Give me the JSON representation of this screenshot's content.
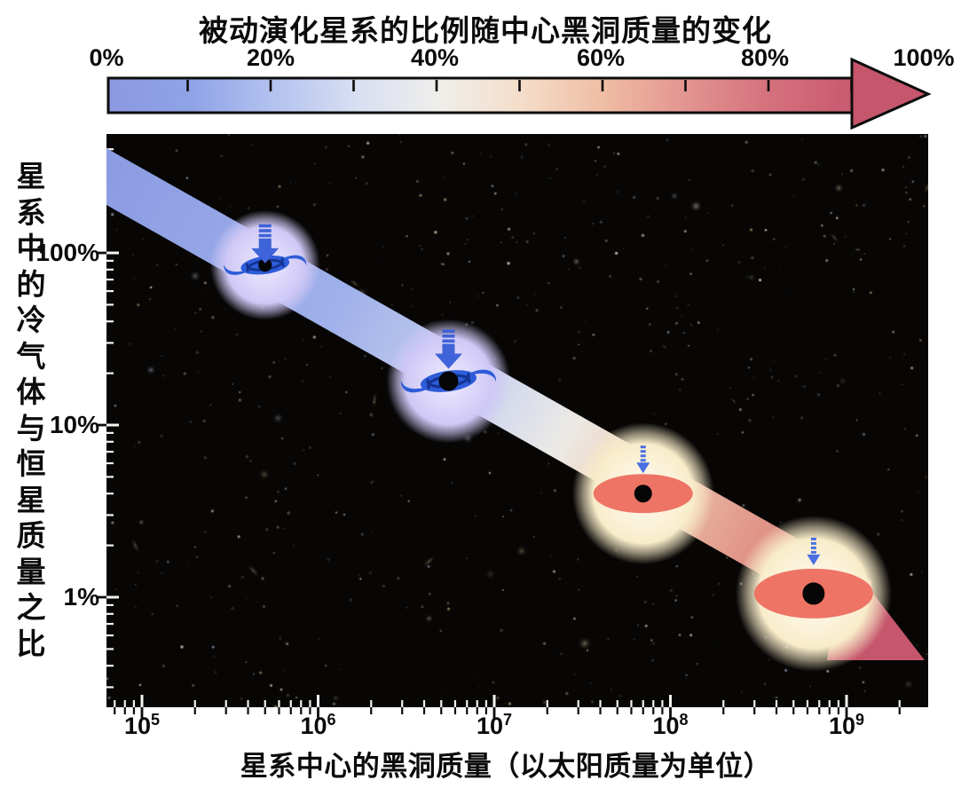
{
  "header": {
    "title": "被动演化星系的比例随中心黑洞质量的变化"
  },
  "colorbar": {
    "labels": [
      "0%",
      "20%",
      "40%",
      "60%",
      "80%",
      "100%"
    ],
    "tick_percents": [
      10,
      20,
      30,
      40,
      50,
      60,
      70,
      80,
      90
    ],
    "gradient": [
      "#8b99e0",
      "#8fa3e7",
      "#b3c2ef",
      "#d8dff2",
      "#efeeea",
      "#f4ddc9",
      "#efbca4",
      "#e29390",
      "#d4707c",
      "#c85a6e"
    ],
    "arrowhead_color": "#c5566b"
  },
  "axes": {
    "y_label": "星系中的冷气体与恒星质量之比",
    "y_tick_labels": [
      "100%",
      "10%",
      "1%"
    ],
    "y_tick_values_percent": [
      100,
      10,
      1
    ],
    "x_tick_labels": [
      {
        "base": "10",
        "exp": "5"
      },
      {
        "base": "10",
        "exp": "6"
      },
      {
        "base": "10",
        "exp": "7"
      },
      {
        "base": "10",
        "exp": "8"
      },
      {
        "base": "10",
        "exp": "9"
      }
    ],
    "x_label": "星系中心的黑洞质量（以太阳质量为单位）"
  },
  "chart_data": {
    "type": "scatter",
    "title": "被动演化星系的比例随中心黑洞质量的变化",
    "xlabel": "星系中心的黑洞质量（以太阳质量为单位）",
    "ylabel": "星系中的冷气体与恒星质量之比",
    "x_scale": "log",
    "y_scale": "log",
    "xlim": [
      63000.0,
      2900000000.0
    ],
    "ylim_percent": [
      0.23,
      490
    ],
    "x_ticks": [
      "10^5",
      "10^6",
      "10^7",
      "10^8",
      "10^9"
    ],
    "y_ticks_percent": [
      100,
      10,
      1
    ],
    "grid": false,
    "colorbar": {
      "title": "被动演化星系的比例随中心黑洞质量的变化",
      "range_percent": [
        0,
        100
      ],
      "tick_labels": [
        "0%",
        "20%",
        "40%",
        "60%",
        "80%",
        "100%"
      ],
      "orientation": "horizontal",
      "style": "blue-to-red arrow"
    },
    "points": [
      {
        "black_hole_mass_msun": 500000.0,
        "cold_gas_to_stellar_percent": 85,
        "galaxy_type": "spiral",
        "color_theme": "blue"
      },
      {
        "black_hole_mass_msun": 5500000.0,
        "cold_gas_to_stellar_percent": 18,
        "galaxy_type": "spiral",
        "color_theme": "blue"
      },
      {
        "black_hole_mass_msun": 70000000.0,
        "cold_gas_to_stellar_percent": 4,
        "galaxy_type": "elliptical",
        "color_theme": "red"
      },
      {
        "black_hole_mass_msun": 650000000.0,
        "cold_gas_to_stellar_percent": 1.05,
        "galaxy_type": "elliptical",
        "color_theme": "red"
      }
    ],
    "trend_band": {
      "shape": "diagonal gradient band with arrowhead",
      "from": {
        "black_hole_mass_msun": 63000.0,
        "cold_gas_to_stellar_percent": 277
      },
      "to": {
        "black_hole_mass_msun": 2800000000.0,
        "cold_gas_to_stellar_percent": 0.43
      },
      "gradient": [
        "#8c9ce2",
        "#eceae6",
        "#c5566b"
      ]
    }
  },
  "galaxies": [
    {
      "icon": "spiral-galaxy-icon",
      "halo_color": "#d6cff7",
      "body_color": "#2e5cd9",
      "detail_color": "#123390",
      "black_hole": true,
      "arrow_icon": "striped-down-arrow-icon",
      "arrow_color": "#3f63d8"
    },
    {
      "icon": "spiral-galaxy-icon",
      "halo_color": "#d6cff7",
      "body_color": "#2e5cd9",
      "detail_color": "#123390",
      "black_hole": true,
      "arrow_icon": "striped-down-arrow-icon",
      "arrow_color": "#3f63d8"
    },
    {
      "icon": "elliptical-galaxy-icon",
      "halo_color": "#f8ecca",
      "body_color": "#ee7465",
      "detail_color": "#ee7465",
      "black_hole": true,
      "arrow_icon": "dashed-down-arrow-icon",
      "arrow_color": "#4a6fe2"
    },
    {
      "icon": "elliptical-galaxy-icon",
      "halo_color": "#f8ecca",
      "body_color": "#ee7465",
      "detail_color": "#ee7465",
      "black_hole": true,
      "arrow_icon": "dashed-down-arrow-icon",
      "arrow_color": "#4a6fe2"
    }
  ]
}
